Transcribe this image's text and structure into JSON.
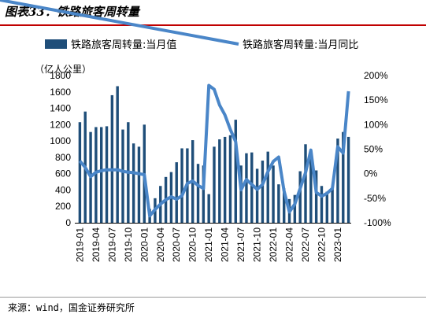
{
  "title": "图表33：铁路旅客周转量",
  "source": "来源：wind，国金证券研究所",
  "chart_data": {
    "type": "bar+line",
    "ylabel_left": "（亿人公里）",
    "ylim_left": [
      0,
      1800
    ],
    "yticks_left": [
      "0",
      "200",
      "400",
      "600",
      "800",
      "1000",
      "1200",
      "1400",
      "1600",
      "1800"
    ],
    "ylim_right": [
      -100,
      200
    ],
    "yticks_right": [
      "-100%",
      "-50%",
      "0%",
      "50%",
      "100%",
      "150%",
      "200%"
    ],
    "xticks": [
      "2019-01",
      "2019-04",
      "2019-07",
      "2019-10",
      "2020-01",
      "2020-04",
      "2020-07",
      "2020-10",
      "2021-01",
      "2021-04",
      "2021-07",
      "2021-10",
      "2022-01",
      "2022-04",
      "2022-07",
      "2022-10",
      "2023-01"
    ],
    "categories": [
      "2019-01",
      "2019-02",
      "2019-03",
      "2019-04",
      "2019-05",
      "2019-06",
      "2019-07",
      "2019-08",
      "2019-09",
      "2019-10",
      "2019-11",
      "2019-12",
      "2020-01",
      "2020-02",
      "2020-03",
      "2020-04",
      "2020-05",
      "2020-06",
      "2020-07",
      "2020-08",
      "2020-09",
      "2020-10",
      "2020-11",
      "2020-12",
      "2021-01",
      "2021-02",
      "2021-03",
      "2021-04",
      "2021-05",
      "2021-06",
      "2021-07",
      "2021-08",
      "2021-09",
      "2021-10",
      "2021-11",
      "2021-12",
      "2022-01",
      "2022-02",
      "2022-03",
      "2022-04",
      "2022-05",
      "2022-06",
      "2022-07",
      "2022-08",
      "2022-09",
      "2022-10",
      "2022-11",
      "2022-12",
      "2023-01",
      "2023-02",
      "2023-03"
    ],
    "series": [
      {
        "name": "铁路旅客周转量:当月值",
        "kind": "bar",
        "axis": "left",
        "color": "#1f4e79",
        "values": [
          1230,
          1360,
          1110,
          1170,
          1170,
          1180,
          1560,
          1670,
          1140,
          1230,
          970,
          930,
          1200,
          170,
          300,
          450,
          560,
          620,
          740,
          910,
          910,
          1010,
          720,
          700,
          350,
          930,
          1020,
          1050,
          1070,
          1260,
          700,
          850,
          860,
          660,
          760,
          870,
          700,
          470,
          420,
          290,
          340,
          630,
          960,
          800,
          640,
          450,
          380,
          420,
          1030,
          1110,
          1050
        ]
      },
      {
        "name": "铁路旅客周转量:当月同比",
        "kind": "line",
        "axis": "right",
        "color": "#4a86c8",
        "values": [
          26,
          13,
          -6,
          3,
          6,
          8,
          8,
          8,
          5,
          3,
          2,
          0,
          -2,
          -86,
          -73,
          -62,
          -53,
          -47,
          -52,
          -45,
          -20,
          -15,
          -24,
          -30,
          180,
          172,
          140,
          120,
          90,
          65,
          -33,
          -12,
          -22,
          -32,
          -22,
          4,
          25,
          34,
          -35,
          -78,
          -62,
          -30,
          2,
          48,
          -38,
          -46,
          -40,
          -30,
          55,
          42,
          168
        ]
      }
    ]
  }
}
